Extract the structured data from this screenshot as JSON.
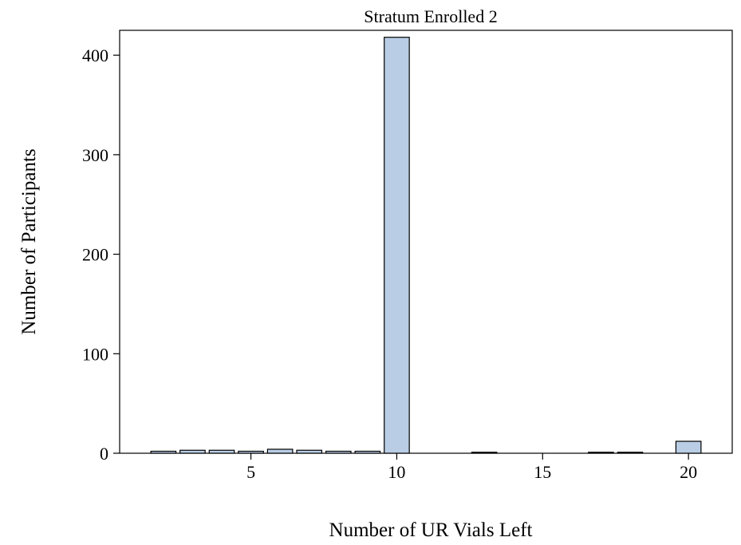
{
  "chart_data": {
    "type": "bar",
    "title": "Stratum Enrolled 2",
    "xlabel": "Number of UR Vials Left",
    "ylabel": "Number of Participants",
    "xlim": [
      0.5,
      21.5
    ],
    "ylim": [
      0,
      425
    ],
    "xticks": [
      5,
      10,
      15,
      20
    ],
    "yticks": [
      0,
      100,
      200,
      300,
      400
    ],
    "bar_color": "#b9cde5",
    "bar_edge_color": "#000000",
    "grid": false,
    "legend": "none",
    "x": [
      2,
      3,
      4,
      5,
      6,
      7,
      8,
      9,
      10,
      13,
      17,
      18,
      20
    ],
    "values": [
      2,
      3,
      3,
      2,
      4,
      3,
      2,
      2,
      418,
      1,
      1,
      1,
      12
    ]
  }
}
